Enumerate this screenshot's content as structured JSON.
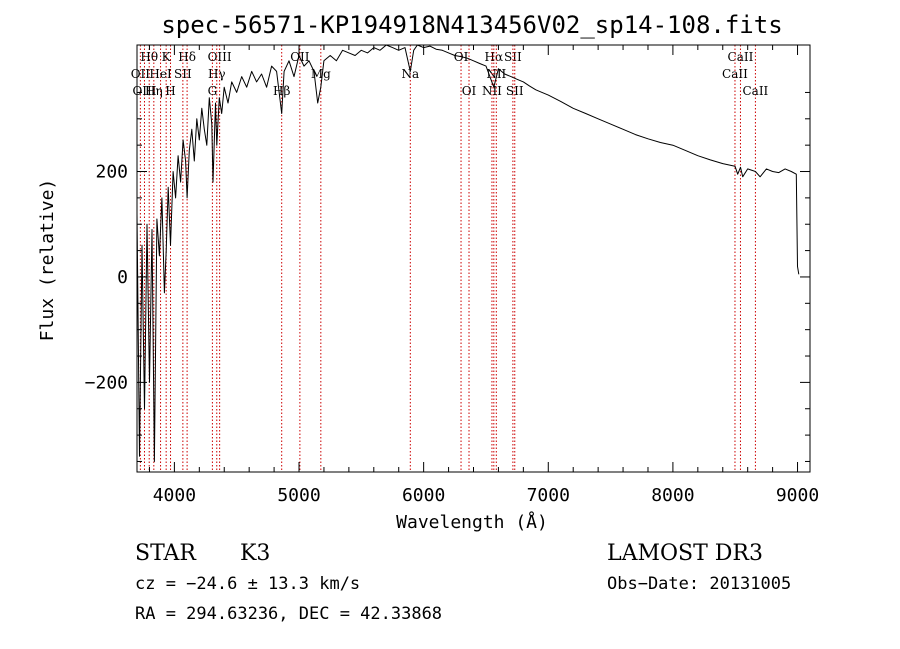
{
  "chart_data": {
    "type": "line",
    "title": "spec-56571-KP194918N413456V02_sp14-108.fits",
    "xlabel": "Wavelength (Å)",
    "ylabel": "Flux (relative)",
    "xlim": [
      3700,
      9100
    ],
    "ylim": [
      -370,
      440
    ],
    "xticks": [
      4000,
      5000,
      6000,
      7000,
      8000,
      9000
    ],
    "xtick_labels": [
      "4000",
      "5000",
      "6000",
      "7000",
      "8000",
      "9000"
    ],
    "yticks": [
      -200,
      0,
      200
    ],
    "ytick_labels": [
      "−200",
      "0",
      "200"
    ],
    "grid": false,
    "series": [
      {
        "name": "spectrum",
        "x": [
          3700,
          3720,
          3740,
          3760,
          3780,
          3800,
          3820,
          3840,
          3860,
          3880,
          3900,
          3920,
          3934,
          3950,
          3969,
          3990,
          4010,
          4030,
          4050,
          4070,
          4090,
          4102,
          4120,
          4140,
          4160,
          4180,
          4200,
          4220,
          4240,
          4260,
          4280,
          4300,
          4310,
          4330,
          4340,
          4360,
          4380,
          4400,
          4430,
          4460,
          4500,
          4540,
          4580,
          4620,
          4660,
          4700,
          4740,
          4780,
          4820,
          4861,
          4880,
          4920,
          4960,
          5000,
          5040,
          5080,
          5120,
          5150,
          5175,
          5200,
          5250,
          5300,
          5350,
          5400,
          5450,
          5500,
          5550,
          5600,
          5650,
          5700,
          5750,
          5800,
          5850,
          5893,
          5920,
          5950,
          6000,
          6050,
          6100,
          6150,
          6200,
          6250,
          6300,
          6350,
          6400,
          6450,
          6500,
          6563,
          6600,
          6650,
          6700,
          6750,
          6800,
          6850,
          6900,
          6950,
          7000,
          7100,
          7200,
          7300,
          7400,
          7500,
          7600,
          7700,
          7800,
          7900,
          8000,
          8100,
          8200,
          8300,
          8400,
          8498,
          8520,
          8542,
          8560,
          8600,
          8662,
          8700,
          8750,
          8800,
          8850,
          8900,
          8950,
          8990,
          9000,
          9010
        ],
        "y": [
          120,
          -340,
          60,
          -250,
          100,
          -200,
          90,
          -350,
          110,
          40,
          150,
          -30,
          50,
          170,
          60,
          200,
          150,
          230,
          180,
          260,
          220,
          150,
          240,
          280,
          220,
          300,
          260,
          320,
          280,
          250,
          340,
          290,
          180,
          330,
          250,
          340,
          310,
          360,
          330,
          370,
          350,
          380,
          360,
          390,
          370,
          385,
          360,
          400,
          390,
          310,
          390,
          410,
          380,
          420,
          400,
          410,
          390,
          330,
          360,
          410,
          420,
          410,
          430,
          425,
          420,
          430,
          425,
          435,
          430,
          440,
          435,
          430,
          435,
          390,
          430,
          440,
          435,
          438,
          432,
          430,
          425,
          420,
          418,
          415,
          410,
          405,
          400,
          360,
          395,
          385,
          380,
          375,
          370,
          362,
          355,
          350,
          345,
          333,
          320,
          310,
          300,
          290,
          280,
          270,
          262,
          255,
          250,
          240,
          230,
          222,
          215,
          210,
          195,
          208,
          190,
          205,
          200,
          190,
          205,
          200,
          198,
          205,
          200,
          195,
          20,
          5
        ]
      }
    ],
    "line_markers": [
      {
        "label": "Hθ",
        "x": 3798,
        "row": 1
      },
      {
        "label": "K",
        "x": 3934,
        "row": 1
      },
      {
        "label": "Hδ",
        "x": 4102,
        "row": 1
      },
      {
        "label": "OIII",
        "x": 4363,
        "row": 1
      },
      {
        "label": "OII",
        "x": 5007,
        "row": 1
      },
      {
        "label": "OI",
        "x": 6300,
        "row": 1
      },
      {
        "label": "Hα",
        "x": 6563,
        "row": 1
      },
      {
        "label": "SII",
        "x": 6716,
        "row": 1
      },
      {
        "label": "CaII",
        "x": 8542,
        "row": 1
      },
      {
        "label": "OII",
        "x": 3727,
        "row": 2
      },
      {
        "label": "HeI",
        "x": 3889,
        "row": 2
      },
      {
        "label": "SII",
        "x": 4068,
        "row": 2
      },
      {
        "label": "Hγ",
        "x": 4340,
        "row": 2
      },
      {
        "label": "Mg",
        "x": 5175,
        "row": 2
      },
      {
        "label": "Na",
        "x": 5893,
        "row": 2
      },
      {
        "label": "NII",
        "x": 6583,
        "row": 2
      },
      {
        "label": "CaII",
        "x": 8498,
        "row": 2
      },
      {
        "label": "OIII",
        "x": 3760,
        "row": 3
      },
      {
        "label": "Hη",
        "x": 3835,
        "row": 3
      },
      {
        "label": "H",
        "x": 3969,
        "row": 3
      },
      {
        "label": "G",
        "x": 4305,
        "row": 3
      },
      {
        "label": "Hβ",
        "x": 4861,
        "row": 3
      },
      {
        "label": "OI",
        "x": 6364,
        "row": 3
      },
      {
        "label": "NII",
        "x": 6548,
        "row": 3
      },
      {
        "label": "SII",
        "x": 6731,
        "row": 3
      },
      {
        "label": "CaII",
        "x": 8662,
        "row": 3
      }
    ]
  },
  "info": {
    "object_class": "STAR",
    "subclass": "K3",
    "survey": "LAMOST DR3",
    "cz": "cz = −24.6 ± 13.3 km/s",
    "obs_date": "Obs−Date: 20131005",
    "coords": "RA = 294.63236, DEC =  42.33868"
  },
  "colors": {
    "spectrum": "#000000",
    "markers": "#cc0000",
    "axes": "#000000"
  }
}
